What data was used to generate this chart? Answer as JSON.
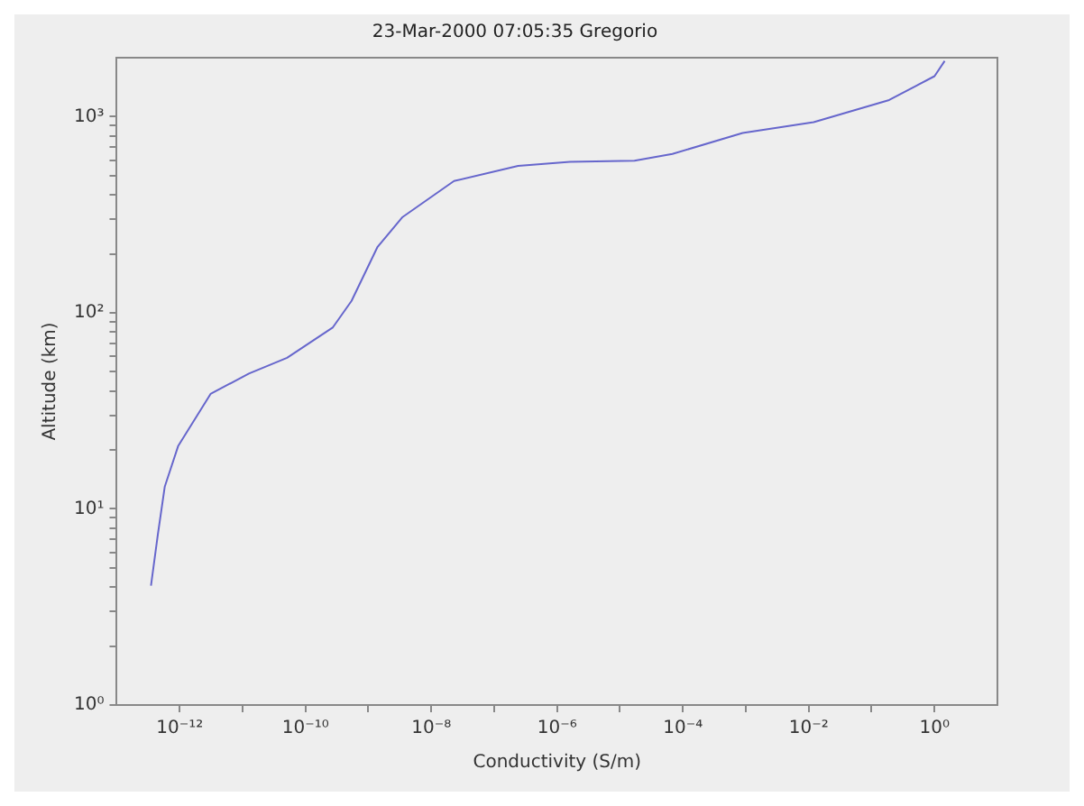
{
  "chart_data": {
    "type": "line",
    "title": "23-Mar-2000 07:05:35 Gregorio",
    "xlabel": "Conductivity (S/m)",
    "ylabel": "Altitude (km)",
    "log": "xy",
    "grid": false,
    "legend": false,
    "marker": "none",
    "line_style": "solid",
    "xlim": [
      1e-13,
      10
    ],
    "ylim": [
      1,
      2000
    ],
    "xticks": [
      {
        "value": 1e-12,
        "label": "10⁻¹²"
      },
      {
        "value": 1e-11,
        "label": null
      },
      {
        "value": 1e-10,
        "label": "10⁻¹⁰"
      },
      {
        "value": 1e-09,
        "label": null
      },
      {
        "value": 1e-08,
        "label": "10⁻⁸"
      },
      {
        "value": 1e-07,
        "label": null
      },
      {
        "value": 1e-06,
        "label": "10⁻⁶"
      },
      {
        "value": 1e-05,
        "label": null
      },
      {
        "value": 0.0001,
        "label": "10⁻⁴"
      },
      {
        "value": 0.001,
        "label": null
      },
      {
        "value": 0.01,
        "label": "10⁻²"
      },
      {
        "value": 0.1,
        "label": null
      },
      {
        "value": 1,
        "label": "10⁰"
      }
    ],
    "yticks": [
      {
        "value": 1,
        "label": "10⁰"
      },
      {
        "value": 2,
        "label": null
      },
      {
        "value": 3,
        "label": null
      },
      {
        "value": 4,
        "label": null
      },
      {
        "value": 5,
        "label": null
      },
      {
        "value": 6,
        "label": null
      },
      {
        "value": 7,
        "label": null
      },
      {
        "value": 8,
        "label": null
      },
      {
        "value": 9,
        "label": null
      },
      {
        "value": 10,
        "label": "10¹"
      },
      {
        "value": 20,
        "label": null
      },
      {
        "value": 30,
        "label": null
      },
      {
        "value": 40,
        "label": null
      },
      {
        "value": 50,
        "label": null
      },
      {
        "value": 60,
        "label": null
      },
      {
        "value": 70,
        "label": null
      },
      {
        "value": 80,
        "label": null
      },
      {
        "value": 90,
        "label": null
      },
      {
        "value": 100,
        "label": "10²"
      },
      {
        "value": 200,
        "label": null
      },
      {
        "value": 300,
        "label": null
      },
      {
        "value": 400,
        "label": null
      },
      {
        "value": 500,
        "label": null
      },
      {
        "value": 600,
        "label": null
      },
      {
        "value": 700,
        "label": null
      },
      {
        "value": 800,
        "label": null
      },
      {
        "value": 900,
        "label": null
      },
      {
        "value": 1000,
        "label": "10³"
      }
    ],
    "x": [
      3.5e-13,
      4.5e-13,
      5.8e-13,
      9.5e-13,
      3.1e-12,
      1.26e-11,
      5.1e-11,
      2.7e-10,
      5.4e-10,
      1.4e-09,
      3.5e-09,
      2.3e-08,
      2.4e-07,
      1.6e-06,
      1.7e-05,
      6.8e-05,
      0.00089,
      0.012,
      0.19,
      1.0,
      1.45
    ],
    "series": [
      {
        "color": "#6666cc",
        "values": [
          4.06,
          7.4,
          13,
          21,
          38.6,
          49,
          59,
          84,
          115,
          217,
          308,
          470,
          561,
          589,
          597,
          646,
          826,
          938,
          1217,
          1610,
          1925
        ]
      }
    ]
  }
}
